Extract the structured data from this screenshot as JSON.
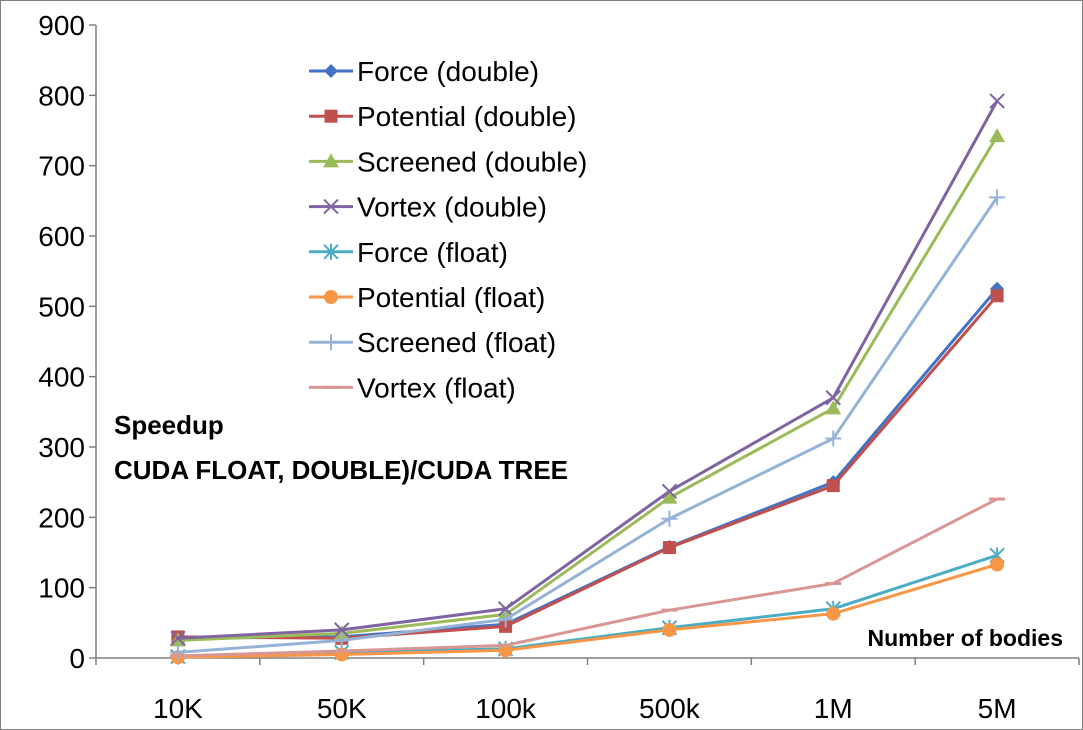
{
  "chart_data": {
    "type": "line",
    "categories": [
      "10K",
      "50K",
      "100k",
      "500k",
      "1M",
      "5M"
    ],
    "ylim": [
      0,
      900
    ],
    "yticks": [
      0,
      100,
      200,
      300,
      400,
      500,
      600,
      700,
      800,
      900
    ],
    "xlabel": "Number of bodies",
    "annotation_lines": [
      "Speedup",
      "CUDA FLOAT, DOUBLE)/CUDA TREE"
    ],
    "grid": false,
    "legend_position": "top-center",
    "series": [
      {
        "name": "Force (double)",
        "color": "#4472C4",
        "marker": "diamond",
        "values": [
          28,
          30,
          48,
          158,
          250,
          525
        ]
      },
      {
        "name": "Potential (double)",
        "color": "#C0504D",
        "marker": "square",
        "values": [
          30,
          28,
          45,
          157,
          245,
          515
        ]
      },
      {
        "name": "Screened (double)",
        "color": "#9BBB59",
        "marker": "triangle",
        "values": [
          25,
          35,
          62,
          228,
          355,
          742
        ]
      },
      {
        "name": "Vortex (double)",
        "color": "#8064A2",
        "marker": "x",
        "values": [
          28,
          40,
          70,
          237,
          370,
          792
        ]
      },
      {
        "name": "Force (float)",
        "color": "#4BACC6",
        "marker": "star",
        "values": [
          2,
          8,
          13,
          43,
          70,
          146
        ]
      },
      {
        "name": "Potential (float)",
        "color": "#F79646",
        "marker": "circle",
        "values": [
          1,
          5,
          11,
          40,
          63,
          133
        ]
      },
      {
        "name": "Screened (float)",
        "color": "#95B3D7",
        "marker": "plus",
        "values": [
          8,
          25,
          55,
          198,
          312,
          655
        ]
      },
      {
        "name": "Vortex (float)",
        "color": "#DA9694",
        "marker": "dash",
        "values": [
          3,
          10,
          18,
          68,
          106,
          226
        ]
      }
    ]
  }
}
